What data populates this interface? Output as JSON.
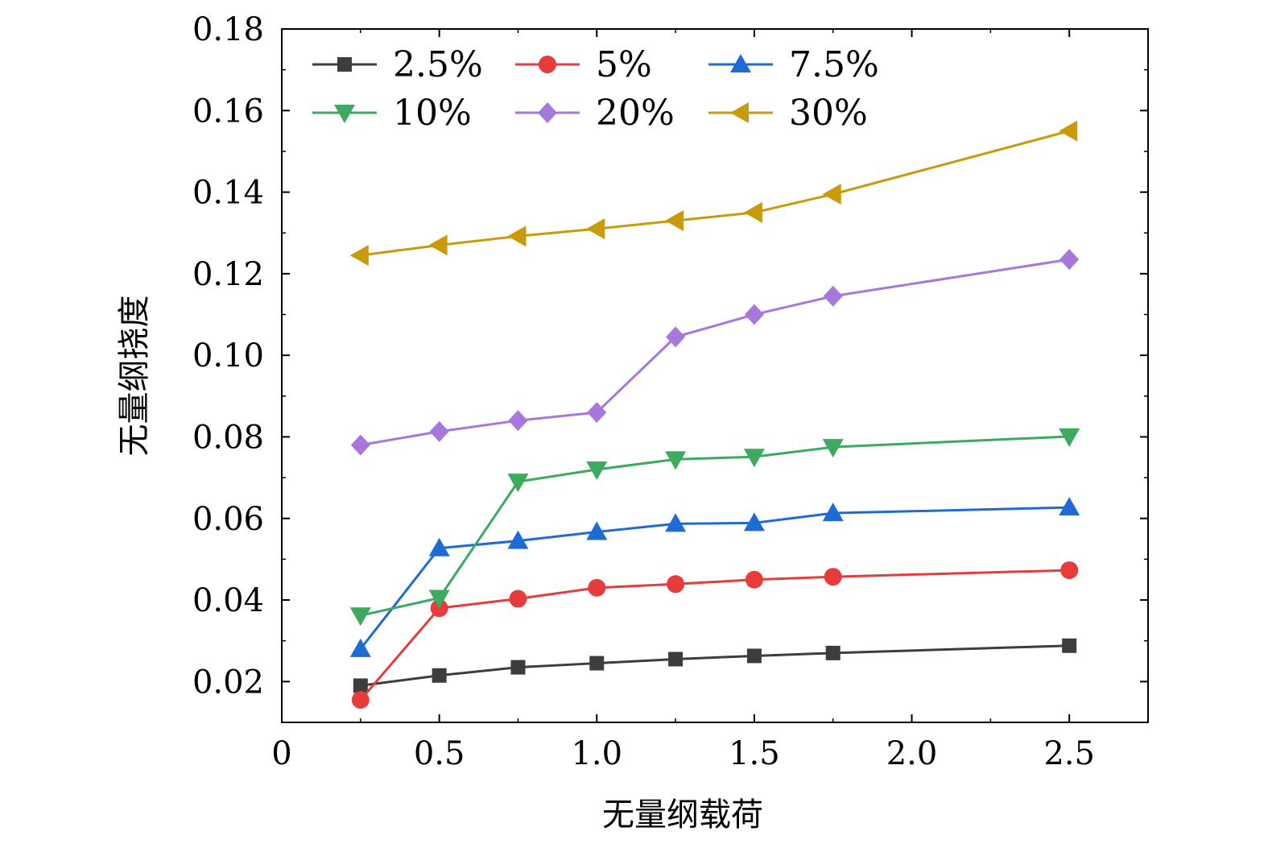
{
  "chart_data": {
    "type": "line",
    "title": "",
    "xlabel": "无量纲载荷",
    "ylabel": "无量纲挠度",
    "xlim": [
      0,
      2.75
    ],
    "ylim": [
      0.01,
      0.18
    ],
    "x_ticks": [
      0,
      0.5,
      1.0,
      1.5,
      2.0,
      2.5
    ],
    "x_tick_labels": [
      "0",
      "0.5",
      "1.0",
      "1.5",
      "2.0",
      "2.5"
    ],
    "y_ticks": [
      0.02,
      0.04,
      0.06,
      0.08,
      0.1,
      0.12,
      0.14,
      0.16,
      0.18
    ],
    "y_tick_labels": [
      "0.02",
      "0.04",
      "0.06",
      "0.08",
      "0.10",
      "0.12",
      "0.14",
      "0.16",
      "0.18"
    ],
    "grid": false,
    "legend_position": "top-left, 3 columns",
    "x": [
      0.25,
      0.5,
      0.75,
      1.0,
      1.25,
      1.5,
      1.75,
      2.5
    ],
    "series": [
      {
        "name": "2.5%",
        "color": "#3d3d3d",
        "marker": "square",
        "values": [
          0.019,
          0.0215,
          0.0235,
          0.0245,
          0.0255,
          0.0263,
          0.027,
          0.0288
        ]
      },
      {
        "name": "5%",
        "color": "#e83b3b",
        "marker": "circle",
        "values": [
          0.0155,
          0.038,
          0.0403,
          0.043,
          0.0439,
          0.045,
          0.0457,
          0.0473
        ]
      },
      {
        "name": "7.5%",
        "color": "#1f6bd6",
        "marker": "triangle-up",
        "values": [
          0.028,
          0.0527,
          0.0545,
          0.0567,
          0.0587,
          0.0589,
          0.0613,
          0.0627
        ]
      },
      {
        "name": "10%",
        "color": "#3caa5f",
        "marker": "triangle-down",
        "values": [
          0.0362,
          0.0405,
          0.069,
          0.072,
          0.0745,
          0.0751,
          0.0775,
          0.0801
        ]
      },
      {
        "name": "20%",
        "color": "#a678dc",
        "marker": "diamond",
        "values": [
          0.078,
          0.0813,
          0.084,
          0.086,
          0.1045,
          0.11,
          0.1145,
          0.1235
        ]
      },
      {
        "name": "30%",
        "color": "#c89a0c",
        "marker": "triangle-left",
        "values": [
          0.1245,
          0.127,
          0.1292,
          0.131,
          0.133,
          0.135,
          0.1395,
          0.155
        ]
      }
    ]
  }
}
